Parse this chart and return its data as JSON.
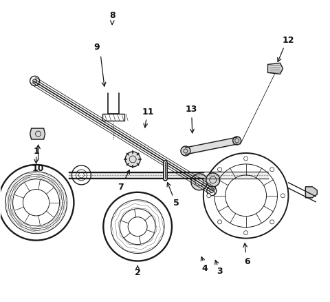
{
  "bg_color": "#ffffff",
  "line_color": "#1a1a1a",
  "label_color": "#111111",
  "fig_width": 4.8,
  "fig_height": 4.39,
  "dpi": 100
}
